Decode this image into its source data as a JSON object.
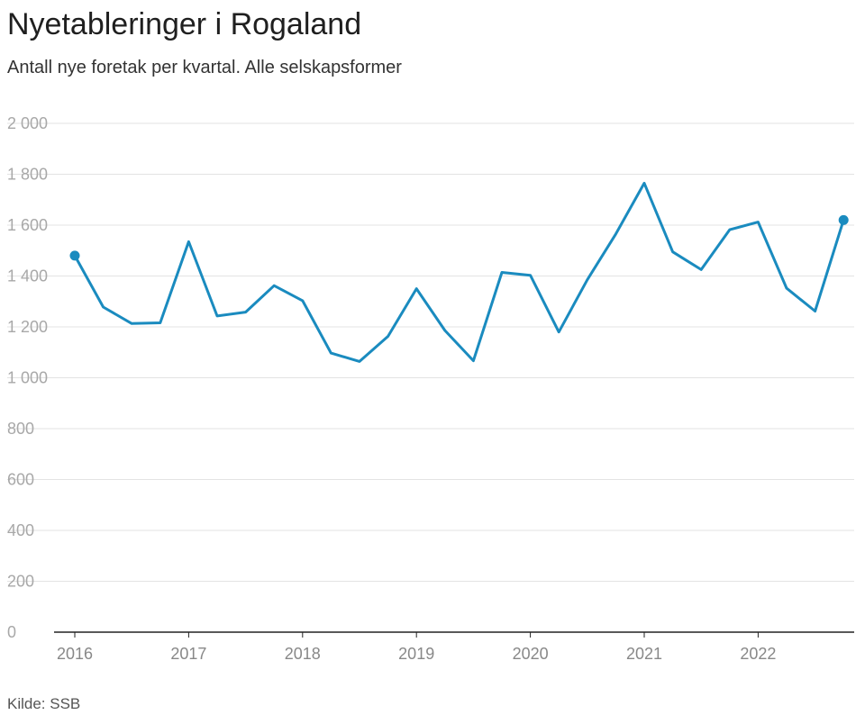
{
  "title": "Nyetableringer i Rogaland",
  "subtitle": "Antall nye foretak per kvartal. Alle selskapsformer",
  "source": "Kilde: SSB",
  "colors": {
    "line": "#1a8bbf",
    "grid": "#e3e3e3",
    "axis": "#222222"
  },
  "chart_data": {
    "type": "line",
    "title": "Nyetableringer i Rogaland",
    "subtitle": "Antall nye foretak per kvartal. Alle selskapsformer",
    "xlabel": "",
    "ylabel": "",
    "ylim": [
      0,
      2000
    ],
    "yticks": [
      0,
      200,
      400,
      600,
      800,
      1000,
      1200,
      1400,
      1600,
      1800,
      2000
    ],
    "ytick_labels": [
      "0",
      "200",
      "400",
      "600",
      "800",
      "1 000",
      "1 200",
      "1 400",
      "1 600",
      "1 800",
      "2 000"
    ],
    "xtick_labels": [
      "2016",
      "2017",
      "2018",
      "2019",
      "2020",
      "2021",
      "2022"
    ],
    "x": [
      "2016K1",
      "2016K2",
      "2016K3",
      "2016K4",
      "2017K1",
      "2017K2",
      "2017K3",
      "2017K4",
      "2018K1",
      "2018K2",
      "2018K3",
      "2018K4",
      "2019K1",
      "2019K2",
      "2019K3",
      "2019K4",
      "2020K1",
      "2020K2",
      "2020K3",
      "2020K4",
      "2021K1",
      "2021K2",
      "2021K3",
      "2021K4",
      "2022K1",
      "2022K2",
      "2022K3",
      "2022K4"
    ],
    "grid": true,
    "series": [
      {
        "values": [
          1480,
          1278,
          1213,
          1216,
          1535,
          1243,
          1258,
          1362,
          1303,
          1097,
          1064,
          1163,
          1350,
          1186,
          1067,
          1414,
          1403,
          1180,
          1385,
          1565,
          1765,
          1495,
          1425,
          1582,
          1612,
          1352,
          1262,
          1620
        ],
        "markers": "first-and-last"
      }
    ]
  }
}
